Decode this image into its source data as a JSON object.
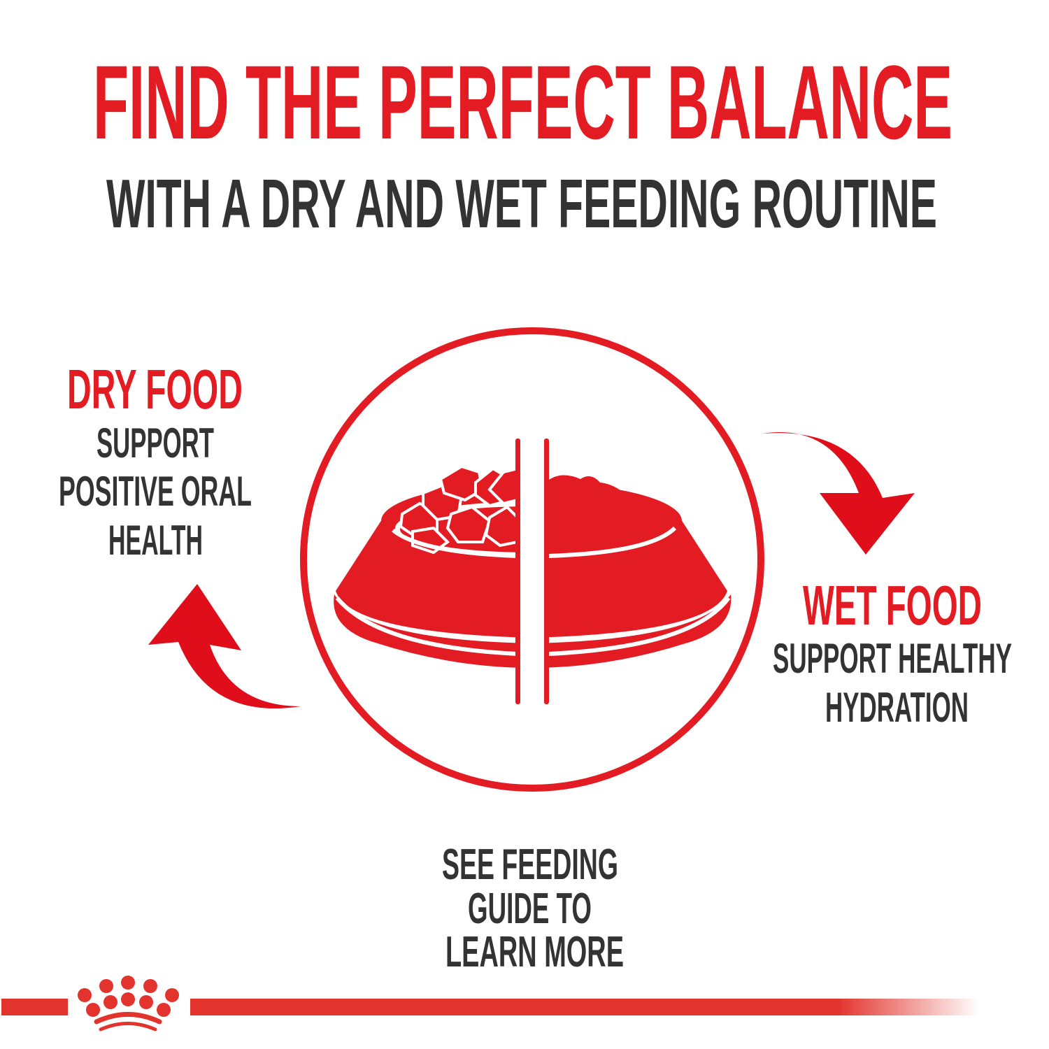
{
  "header": {
    "title": "FIND THE PERFECT BALANCE",
    "subtitle": "WITH A DRY AND WET FEEDING ROUTINE"
  },
  "dry_food": {
    "heading": "DRY FOOD",
    "lines": [
      "SUPPORT",
      "POSITIVE ORAL",
      "HEALTH"
    ]
  },
  "wet_food": {
    "heading": "WET FOOD",
    "lines": [
      "SUPPORT HEALTHY",
      "HYDRATION"
    ]
  },
  "footer": {
    "lines": [
      "SEE FEEDING",
      "GUIDE TO",
      "LEARN MORE"
    ]
  },
  "icons": {
    "center": "split-food-bowl-icon",
    "arrow_right": "curved-arrow-down-icon",
    "arrow_left": "curved-arrow-up-icon",
    "logo": "crown-logo"
  },
  "colors": {
    "accent": "#e31b23",
    "text": "#333333",
    "logo": "#e2332c"
  }
}
